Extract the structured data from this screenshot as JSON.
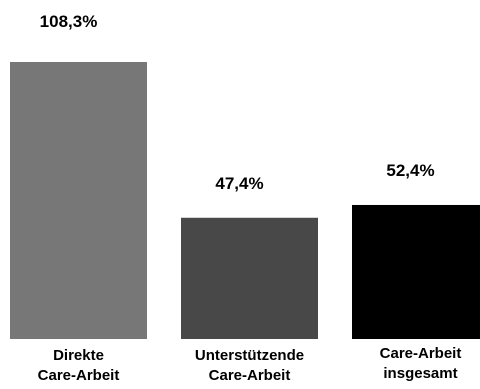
{
  "chart_data": {
    "type": "bar",
    "categories": [
      [
        "Direkte",
        "Care-Arbeit"
      ],
      [
        "Unterstützende",
        "Care-Arbeit"
      ],
      [
        "Care-Arbeit",
        "insgesamt"
      ]
    ],
    "values": [
      108.3,
      47.4,
      52.4
    ],
    "value_labels": [
      "108,3%",
      "47,4%",
      "52,4%"
    ],
    "colors": [
      "#777777",
      "#484848",
      "#000000"
    ],
    "title": "",
    "xlabel": "",
    "ylabel": "",
    "ylim": [
      0,
      108.3
    ],
    "grid": false,
    "legend": "none"
  }
}
